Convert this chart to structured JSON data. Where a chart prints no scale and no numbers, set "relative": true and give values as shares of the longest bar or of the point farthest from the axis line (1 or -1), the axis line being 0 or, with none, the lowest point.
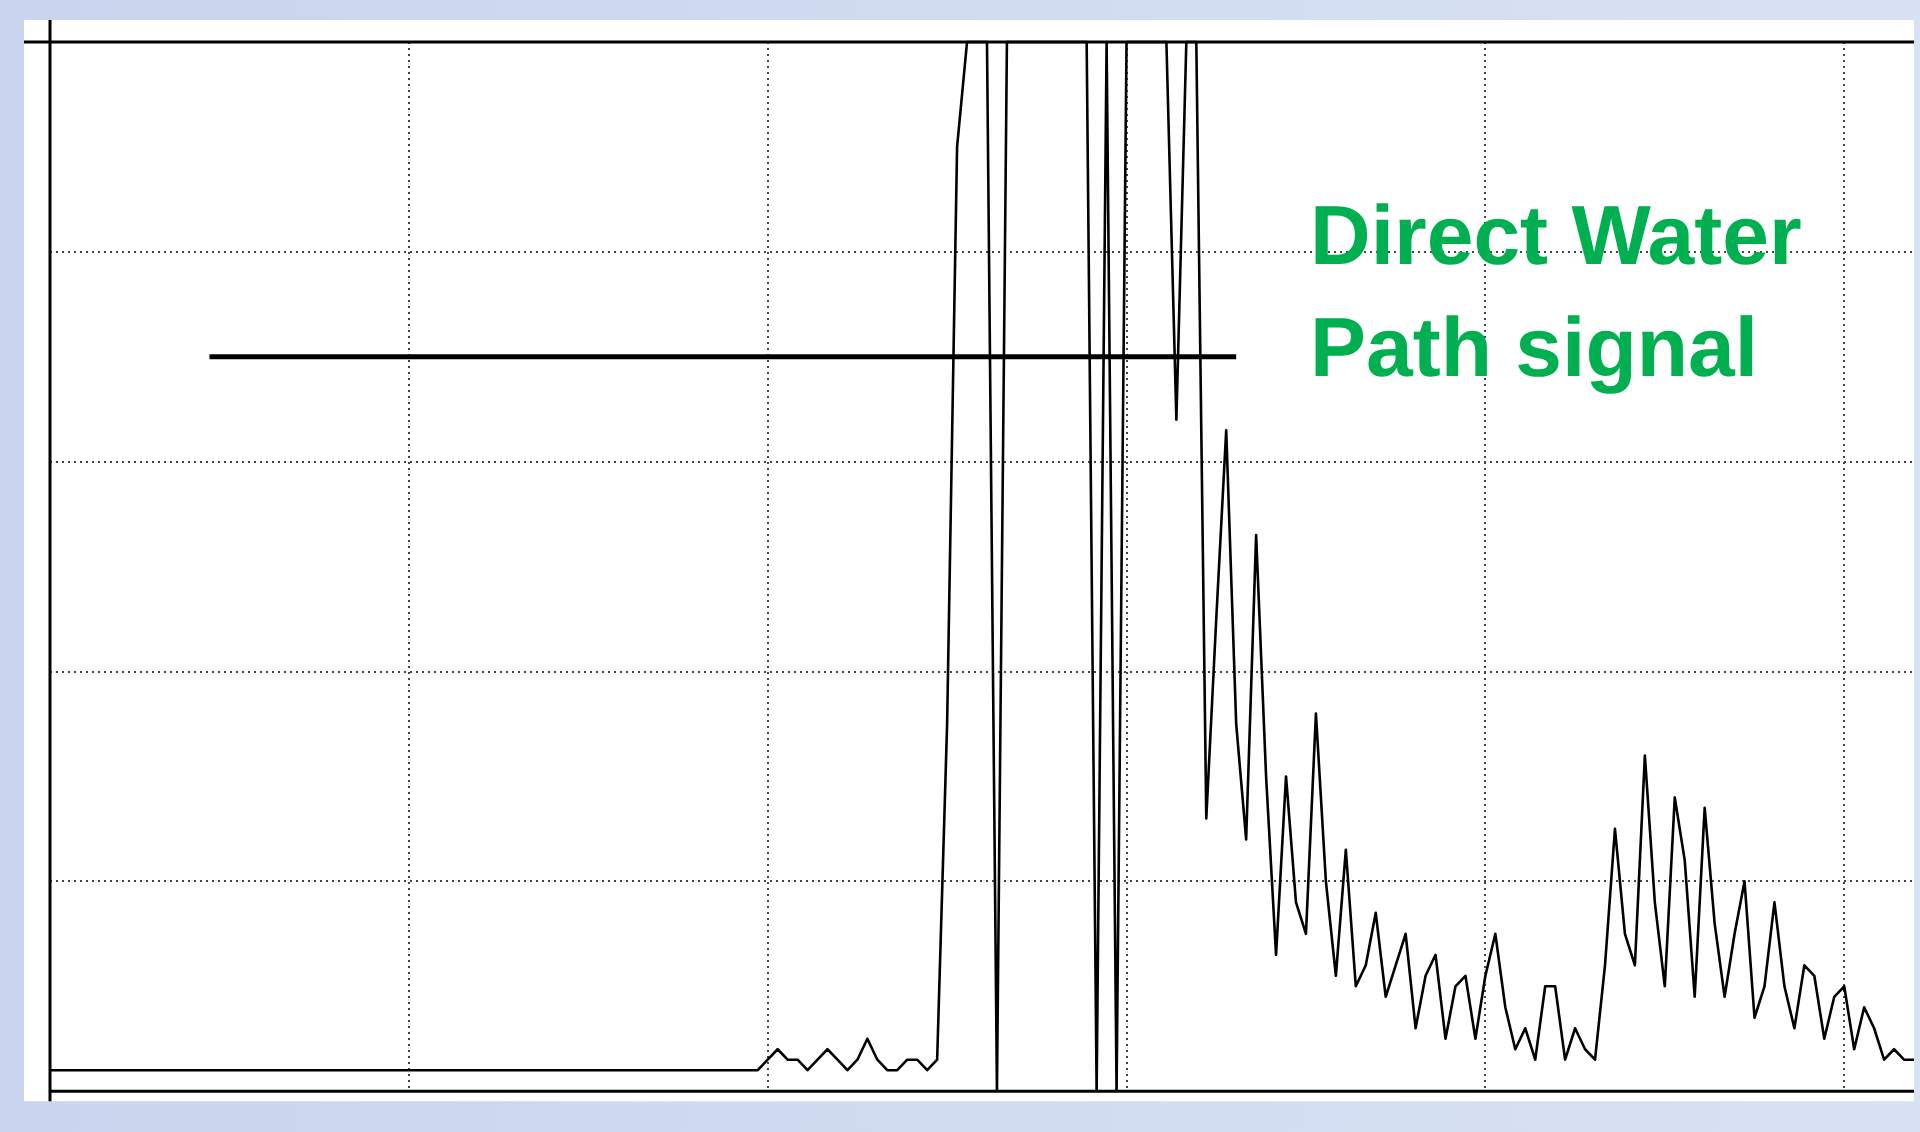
{
  "chart_data": {
    "type": "line",
    "relative": true,
    "grid": true,
    "legend": false,
    "marker": "none",
    "line_style": "solid",
    "annotations": [
      "Direct Water Path signal"
    ],
    "categories": [
      null,
      null,
      null,
      null,
      null,
      null,
      null,
      null,
      null,
      null,
      null,
      null,
      null,
      null,
      null,
      null,
      null,
      null,
      null,
      null,
      null,
      null,
      null,
      null,
      null,
      null,
      null,
      null,
      null,
      null,
      null,
      null,
      null,
      null,
      null,
      null,
      null,
      null,
      null,
      null,
      null,
      null,
      null,
      null,
      null,
      null,
      null,
      null,
      null,
      null,
      null,
      null,
      null,
      null,
      null,
      null,
      null,
      null,
      null,
      null,
      null,
      null,
      null,
      null,
      null,
      null,
      null,
      null,
      null,
      null,
      null,
      null,
      null,
      null,
      null,
      null,
      null,
      null,
      null,
      null,
      null,
      null,
      null,
      null,
      null,
      null,
      null,
      null,
      null,
      null,
      null,
      null,
      null,
      null,
      null,
      null,
      null,
      null,
      null,
      null,
      null,
      null,
      null,
      null,
      null,
      null,
      null,
      null,
      null,
      null,
      null,
      null,
      null,
      null,
      null,
      null,
      null,
      null,
      null,
      null,
      null,
      null,
      null,
      null,
      null,
      null,
      null,
      null,
      null,
      null,
      null,
      null,
      null,
      null,
      null,
      null,
      null,
      null,
      null,
      null,
      null,
      null,
      null,
      null,
      null,
      null,
      null,
      null,
      null,
      null,
      null,
      null,
      null,
      null,
      null,
      null,
      null,
      null,
      null,
      null,
      null,
      null,
      null,
      null,
      null,
      null,
      null,
      null,
      null,
      null,
      null,
      null,
      null,
      null,
      null,
      null,
      null,
      null,
      null,
      null,
      null,
      null,
      null,
      null,
      null,
      null,
      null,
      null
    ],
    "series": [
      {
        "color": "#000000",
        "values": [
          0.02,
          0.02,
          0.02,
          0.02,
          0.02,
          0.02,
          0.02,
          0.02,
          0.02,
          0.02,
          0.02,
          0.02,
          0.02,
          0.02,
          0.02,
          0.02,
          0.02,
          0.02,
          0.02,
          0.02,
          0.02,
          0.02,
          0.02,
          0.02,
          0.02,
          0.02,
          0.02,
          0.02,
          0.02,
          0.02,
          0.02,
          0.02,
          0.02,
          0.02,
          0.02,
          0.02,
          0.02,
          0.02,
          0.02,
          0.02,
          0.02,
          0.02,
          0.02,
          0.02,
          0.02,
          0.02,
          0.02,
          0.02,
          0.02,
          0.02,
          0.02,
          0.02,
          0.02,
          0.02,
          0.02,
          0.02,
          0.02,
          0.02,
          0.02,
          0.02,
          0.02,
          0.02,
          0.02,
          0.02,
          0.02,
          0.02,
          0.02,
          0.02,
          0.02,
          0.02,
          0.02,
          0.02,
          0.03,
          0.04,
          0.03,
          0.03,
          0.02,
          0.03,
          0.04,
          0.03,
          0.02,
          0.03,
          0.05,
          0.03,
          0.02,
          0.02,
          0.03,
          0.03,
          0.02,
          0.03,
          0.35,
          0.9,
          1,
          1,
          1,
          0,
          1,
          1,
          1,
          1,
          1,
          1,
          1,
          1,
          1,
          0,
          1,
          0,
          1,
          1,
          1,
          1,
          1,
          0.64,
          1,
          1,
          0.26,
          0.45,
          0.63,
          0.35,
          0.24,
          0.53,
          0.3,
          0.13,
          0.3,
          0.18,
          0.15,
          0.36,
          0.2,
          0.11,
          0.23,
          0.1,
          0.12,
          0.17,
          0.09,
          0.12,
          0.15,
          0.06,
          0.11,
          0.13,
          0.05,
          0.1,
          0.11,
          0.05,
          0.11,
          0.15,
          0.08,
          0.04,
          0.06,
          0.03,
          0.1,
          0.1,
          0.03,
          0.06,
          0.04,
          0.03,
          0.12,
          0.25,
          0.15,
          0.12,
          0.32,
          0.18,
          0.1,
          0.28,
          0.22,
          0.09,
          0.27,
          0.16,
          0.09,
          0.15,
          0.2,
          0.07,
          0.1,
          0.18,
          0.1,
          0.06,
          0.12,
          0.11,
          0.05,
          0.09,
          0.1,
          0.04,
          0.08,
          0.06,
          0.03,
          0.04,
          0.03,
          0.03
        ]
      },
      {
        "color": "#000000",
        "values": [
          null,
          null,
          null,
          null,
          null,
          null,
          null,
          null,
          null,
          null,
          null,
          null,
          null,
          null,
          null,
          null,
          0.7,
          0.7,
          0.7,
          0.7,
          0.7,
          0.7,
          0.7,
          0.7,
          0.7,
          0.7,
          0.7,
          0.7,
          0.7,
          0.7,
          0.7,
          0.7,
          0.7,
          0.7,
          0.7,
          0.7,
          0.7,
          0.7,
          0.7,
          0.7,
          0.7,
          0.7,
          0.7,
          0.7,
          0.7,
          0.7,
          0.7,
          0.7,
          0.7,
          0.7,
          0.7,
          0.7,
          0.7,
          0.7,
          0.7,
          0.7,
          0.7,
          0.7,
          0.7,
          0.7,
          0.7,
          0.7,
          0.7,
          0.7,
          0.7,
          0.7,
          0.7,
          0.7,
          0.7,
          0.7,
          0.7,
          0.7,
          0.7,
          0.7,
          0.7,
          0.7,
          0.7,
          0.7,
          0.7,
          0.7,
          0.7,
          0.7,
          0.7,
          0.7,
          0.7,
          0.7,
          0.7,
          0.7,
          0.7,
          0.7,
          0.7,
          0.7,
          0.7,
          0.7,
          0.7,
          0.7,
          0.7,
          0.7,
          0.7,
          0.7,
          0.7,
          0.7,
          0.7,
          0.7,
          0.7,
          0.7,
          0.7,
          0.7,
          0.7,
          0.7,
          0.7,
          0.7,
          0.7,
          0.7,
          0.7,
          0.7,
          0.7,
          0.7,
          0.7,
          0.7,
          null,
          null,
          null,
          null,
          null,
          null,
          null,
          null,
          null,
          null,
          null,
          null,
          null,
          null,
          null,
          null,
          null,
          null,
          null,
          null,
          null,
          null,
          null,
          null,
          null,
          null,
          null,
          null,
          null,
          null,
          null,
          null,
          null,
          null,
          null,
          null,
          null,
          null,
          null,
          null,
          null,
          null,
          null,
          null,
          null,
          null,
          null,
          null,
          null,
          null,
          null,
          null,
          null,
          null,
          null,
          null,
          null,
          null,
          null,
          null,
          null,
          null,
          null,
          null,
          null,
          null,
          null,
          null
        ]
      }
    ]
  }
}
